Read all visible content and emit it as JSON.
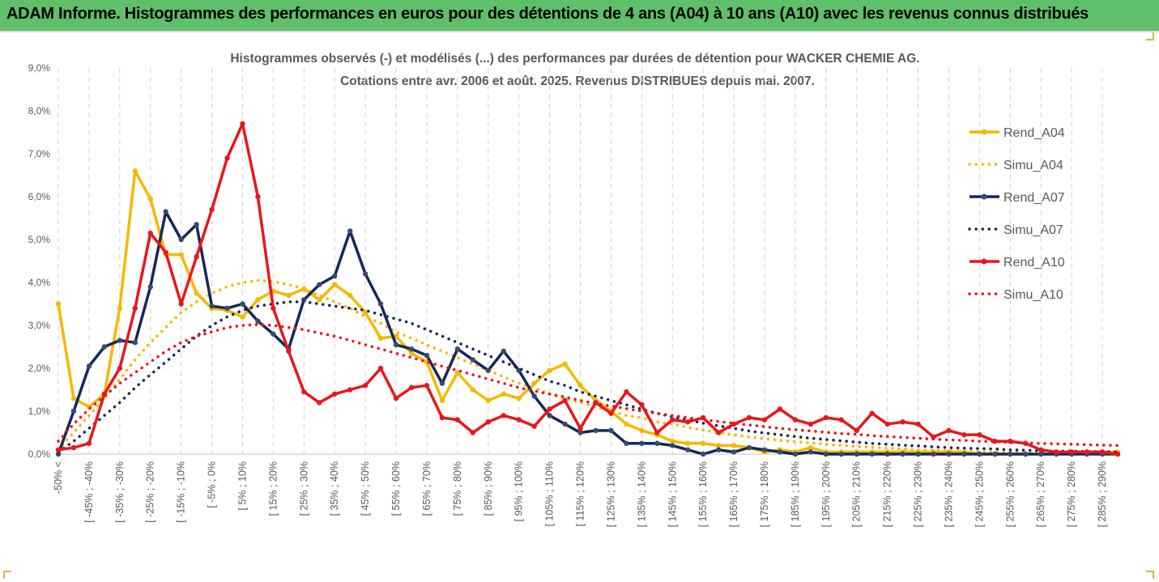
{
  "header": {
    "title": "ADAM Informe. Histogrammes des performances en euros pour des détentions de 4 ans (A04) à 10 ans (A10) avec les revenus connus distribués"
  },
  "chart_data": {
    "type": "line",
    "title_line1": "Histogrammes observés (-) et modélisés (...) des performances par durées de détention pour WACKER CHEMIE AG.",
    "title_line2": "Cotations entre avr. 2006 et août. 2025. Revenus DISTRIBUES depuis mai. 2007.",
    "ylim": [
      0,
      9
    ],
    "y_ticks": [
      "0,0%",
      "1,0%",
      "2,0%",
      "3,0%",
      "4,0%",
      "5,0%",
      "6,0%",
      "7,0%",
      "8,0%",
      "9,0%"
    ],
    "x_labels": [
      "-50% <",
      "[ -45% ; -40%",
      "[ -35% ; -30%",
      "[ -25% ; -20%",
      "[ -15% ; -10%",
      "[ -5% ; 0%",
      "[ 5% ; 10%",
      "[ 15% ; 20%",
      "[ 25% ; 30%",
      "[ 35% ; 40%",
      "[ 45% ; 50%",
      "[ 55% ; 60%",
      "[ 65% ; 70%",
      "[ 75% ; 80%",
      "[ 85% ; 90%",
      "[ 95% ; 100%",
      "[ 105% ; 110%",
      "[ 115% ; 120%",
      "[ 125% ; 130%",
      "[ 135% ; 140%",
      "[ 145% ; 150%",
      "[ 155% ; 160%",
      "[ 165% ; 170%",
      "[ 175% ; 180%",
      "[ 185% ; 190%",
      "[ 195% ; 200%",
      "[ 205% ; 210%",
      "[ 215% ; 220%",
      "[ 225% ; 230%",
      "[ 235% ; 240%",
      "[ 245% ; 250%",
      "[ 255% ; 260%",
      "[ 265% ; 270%",
      "[ 275% ; 280%",
      "[ 285% ; 290%"
    ],
    "legend_position": "right",
    "grid": "vertical dashed",
    "series": [
      {
        "name": "Rend_A04",
        "style": "solid",
        "color": "#f5b800",
        "values": [
          3.5,
          1.3,
          1.1,
          1.4,
          3.4,
          6.6,
          5.95,
          4.65,
          4.65,
          3.75,
          3.4,
          3.35,
          3.2,
          3.6,
          3.8,
          3.7,
          3.85,
          3.6,
          3.95,
          3.7,
          3.3,
          2.7,
          2.75,
          2.35,
          2.15,
          1.25,
          1.9,
          1.5,
          1.25,
          1.4,
          1.3,
          1.65,
          1.95,
          2.1,
          1.6,
          1.25,
          1.0,
          0.7,
          0.55,
          0.45,
          0.3,
          0.25,
          0.25,
          0.2,
          0.2,
          0.15,
          0.05,
          0.1,
          0.05,
          0.15,
          0.05,
          0.05,
          0.05,
          0.05,
          0.05,
          0.05,
          0.05,
          0.05,
          0.05,
          0.05,
          0.0,
          0.0,
          0.0,
          0.0,
          0.0,
          0.0,
          0.05,
          0.05,
          0.05,
          0.05
        ]
      },
      {
        "name": "Simu_A04",
        "style": "dotted",
        "color": "#f5b800",
        "values": [
          0.1,
          0.5,
          0.9,
          1.3,
          1.75,
          2.2,
          2.6,
          2.95,
          3.3,
          3.55,
          3.75,
          3.9,
          4.0,
          4.05,
          4.02,
          3.95,
          3.85,
          3.7,
          3.55,
          3.4,
          3.2,
          3.05,
          2.85,
          2.7,
          2.55,
          2.4,
          2.25,
          2.1,
          1.95,
          1.8,
          1.65,
          1.55,
          1.4,
          1.3,
          1.2,
          1.1,
          1.0,
          0.9,
          0.85,
          0.75,
          0.7,
          0.62,
          0.56,
          0.5,
          0.45,
          0.4,
          0.36,
          0.32,
          0.29,
          0.26,
          0.23,
          0.2,
          0.18,
          0.16,
          0.14,
          0.12,
          0.1,
          0.09,
          0.08,
          0.07,
          0.06,
          0.05,
          0.05,
          0.04,
          0.04,
          0.03,
          0.03,
          0.03,
          0.03,
          0.02
        ]
      },
      {
        "name": "Rend_A07",
        "style": "solid",
        "color": "#14285a",
        "values": [
          0.0,
          1.0,
          2.05,
          2.5,
          2.65,
          2.6,
          3.9,
          5.65,
          5.0,
          5.35,
          3.45,
          3.4,
          3.5,
          3.1,
          2.8,
          2.45,
          3.6,
          3.95,
          4.15,
          5.2,
          4.2,
          3.5,
          2.55,
          2.45,
          2.3,
          1.65,
          2.45,
          2.2,
          1.95,
          2.4,
          1.95,
          1.35,
          0.9,
          0.7,
          0.5,
          0.55,
          0.55,
          0.25,
          0.25,
          0.25,
          0.2,
          0.1,
          0.0,
          0.1,
          0.05,
          0.15,
          0.1,
          0.05,
          0.0,
          0.05,
          0.0,
          0.0,
          0.0,
          0.0,
          0.0,
          0.0,
          0.0,
          0.0,
          0.0,
          0.0,
          0.0,
          0.0,
          0.0,
          0.0,
          0.0,
          0.0,
          0.0,
          0.0,
          0.0,
          0.0
        ]
      },
      {
        "name": "Simu_A07",
        "style": "dotted",
        "color": "#14285a",
        "values": [
          0.05,
          0.3,
          0.6,
          0.9,
          1.2,
          1.55,
          1.85,
          2.15,
          2.45,
          2.75,
          3.0,
          3.2,
          3.35,
          3.45,
          3.5,
          3.55,
          3.55,
          3.5,
          3.45,
          3.4,
          3.35,
          3.25,
          3.15,
          3.05,
          2.9,
          2.75,
          2.6,
          2.45,
          2.3,
          2.15,
          2.0,
          1.85,
          1.7,
          1.6,
          1.45,
          1.35,
          1.25,
          1.15,
          1.05,
          0.95,
          0.87,
          0.8,
          0.72,
          0.66,
          0.6,
          0.54,
          0.49,
          0.45,
          0.41,
          0.37,
          0.34,
          0.31,
          0.28,
          0.25,
          0.23,
          0.21,
          0.19,
          0.17,
          0.15,
          0.14,
          0.13,
          0.12,
          0.1,
          0.09,
          0.08,
          0.07,
          0.07,
          0.06,
          0.06,
          0.05
        ]
      },
      {
        "name": "Rend_A10",
        "style": "solid",
        "color": "#e8161b",
        "values": [
          0.1,
          0.15,
          0.25,
          1.4,
          2.0,
          3.4,
          5.15,
          4.7,
          3.5,
          4.6,
          5.7,
          6.9,
          7.7,
          6.0,
          3.4,
          2.4,
          1.45,
          1.2,
          1.4,
          1.5,
          1.6,
          2.0,
          1.3,
          1.55,
          1.6,
          0.85,
          0.8,
          0.5,
          0.75,
          0.9,
          0.8,
          0.65,
          1.05,
          1.25,
          0.6,
          1.2,
          0.95,
          1.45,
          1.15,
          0.5,
          0.8,
          0.75,
          0.85,
          0.5,
          0.7,
          0.85,
          0.8,
          1.05,
          0.8,
          0.7,
          0.85,
          0.8,
          0.55,
          0.95,
          0.7,
          0.75,
          0.7,
          0.4,
          0.55,
          0.45,
          0.45,
          0.3,
          0.3,
          0.25,
          0.1,
          0.05,
          0.05,
          0.05,
          0.05,
          0.0
        ]
      },
      {
        "name": "Simu_A10",
        "style": "dotted",
        "color": "#e8161b",
        "values": [
          0.3,
          0.7,
          1.05,
          1.35,
          1.65,
          1.9,
          2.15,
          2.4,
          2.6,
          2.75,
          2.85,
          2.95,
          3.0,
          3.02,
          3.0,
          2.95,
          2.9,
          2.82,
          2.75,
          2.65,
          2.55,
          2.45,
          2.35,
          2.25,
          2.15,
          2.05,
          1.95,
          1.85,
          1.75,
          1.65,
          1.55,
          1.47,
          1.4,
          1.33,
          1.25,
          1.18,
          1.12,
          1.06,
          1.0,
          0.95,
          0.9,
          0.85,
          0.8,
          0.76,
          0.72,
          0.68,
          0.64,
          0.6,
          0.57,
          0.54,
          0.51,
          0.48,
          0.46,
          0.43,
          0.41,
          0.39,
          0.37,
          0.35,
          0.33,
          0.32,
          0.3,
          0.29,
          0.27,
          0.26,
          0.25,
          0.24,
          0.23,
          0.22,
          0.21,
          0.2
        ]
      }
    ]
  }
}
